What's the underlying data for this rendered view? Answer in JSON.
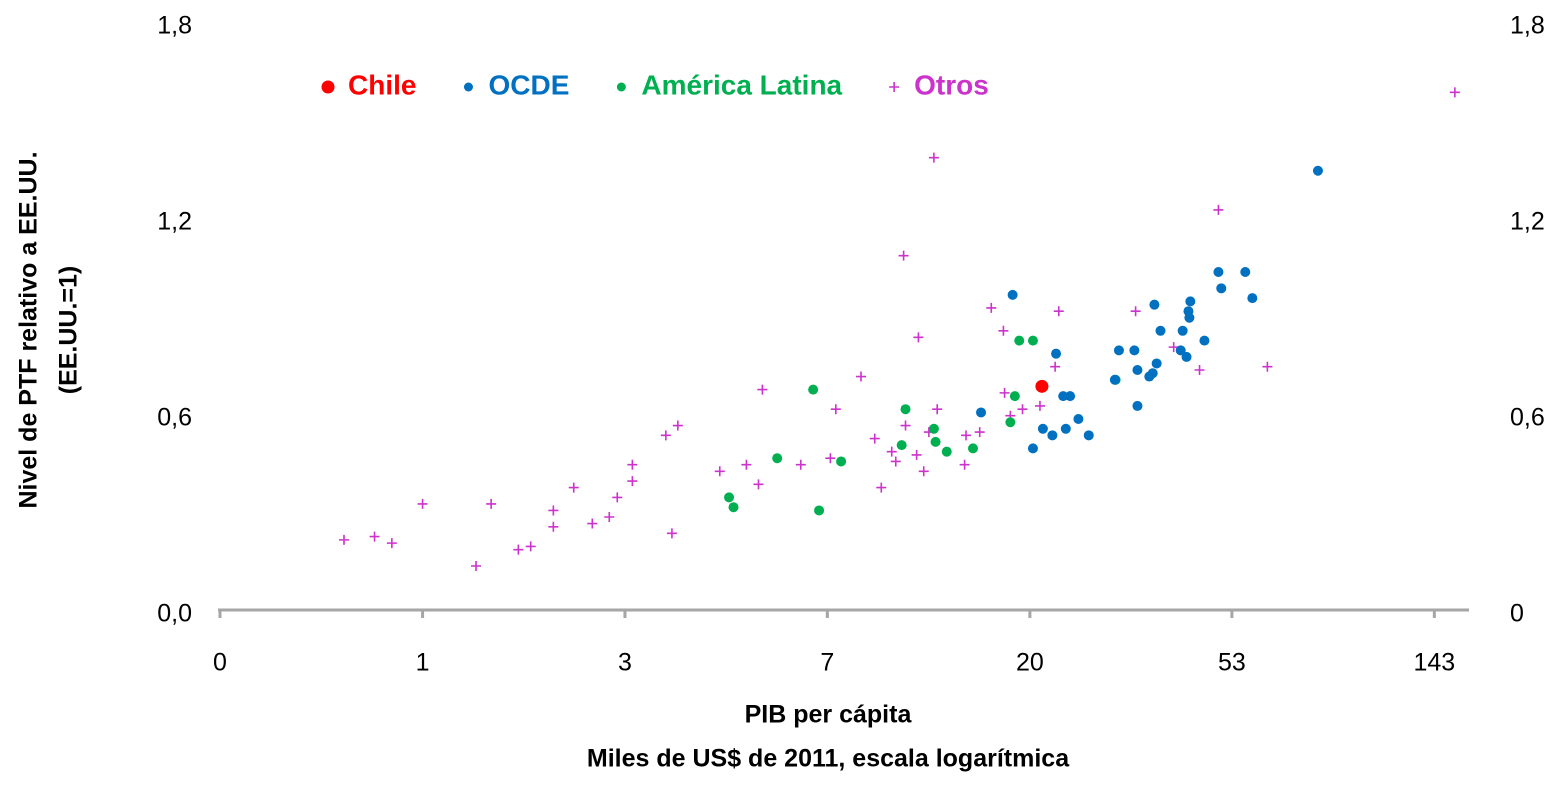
{
  "chart_data": {
    "type": "scatter",
    "xlabel": [
      "PIB per cápita",
      "Miles de US$ de 2011, escala logarítmica"
    ],
    "ylabel": [
      "Nivel de PTF relativo a EE.UU.",
      "(EE.UU.=1)"
    ],
    "xscale": "log",
    "xlim": [
      0.37,
      170
    ],
    "xticks": [
      {
        "value": 0.37,
        "label": "0"
      },
      1,
      {
        "value": 2.7,
        "label": "3"
      },
      {
        "value": 7.29,
        "label": "7"
      },
      {
        "value": 19.7,
        "label": "20"
      },
      {
        "value": 53.1,
        "label": "53"
      },
      {
        "value": 143.4,
        "label": "143"
      }
    ],
    "ylim": [
      0,
      1.8
    ],
    "yticks": [
      {
        "value": 0,
        "label": "0,0"
      },
      {
        "value": 0.6,
        "label": "0,6"
      },
      {
        "value": 1.2,
        "label": "1,2"
      },
      {
        "value": 1.8,
        "label": "1,8"
      }
    ],
    "y2lim": [
      0,
      1.8
    ],
    "y2ticks": [
      0,
      {
        "value": 0.6,
        "label": "0,6"
      },
      {
        "value": 1.2,
        "label": "1,2"
      },
      {
        "value": 1.8,
        "label": "1,8"
      }
    ],
    "grid": false,
    "legend": "top",
    "series": [
      {
        "name": "Chile",
        "color": "#ff0000",
        "marker": "circle",
        "x": [
          20.9
        ],
        "values": [
          0.7
        ]
      },
      {
        "name": "OCDE",
        "color": "#0070c0",
        "marker": "circle",
        "x": [
          81.0,
          56.7,
          50.4,
          49.7,
          58.7,
          43.3,
          43.1,
          42.9,
          36.3,
          37.4,
          41.7,
          46.4,
          41.3,
          42.5,
          36.7,
          35.4,
          36.0,
          32.9,
          33.4,
          30.5,
          29.9,
          33.4,
          22.4,
          23.2,
          24.0,
          25.0,
          26.3,
          23.5,
          22.0,
          21.0,
          20.0,
          15.5,
          18.1
        ],
        "values": [
          1.36,
          1.05,
          1.0,
          1.05,
          0.97,
          0.96,
          0.91,
          0.93,
          0.95,
          0.87,
          0.87,
          0.84,
          0.81,
          0.79,
          0.77,
          0.73,
          0.74,
          0.81,
          0.75,
          0.81,
          0.72,
          0.64,
          0.8,
          0.67,
          0.67,
          0.6,
          0.55,
          0.57,
          0.55,
          0.57,
          0.51,
          0.62,
          0.98
        ]
      },
      {
        "name": "América Latina",
        "color": "#00b050",
        "marker": "circle",
        "x": [
          18.7,
          20.0,
          18.3,
          17.9,
          30.0,
          10.7,
          10.5,
          12.3,
          12.4,
          13.1,
          14.9,
          6.8,
          5.7,
          7.8,
          4.5,
          4.6,
          7.0
        ],
        "values": [
          0.84,
          0.84,
          0.67,
          0.59,
          0.72,
          0.63,
          0.52,
          0.57,
          0.53,
          0.5,
          0.51,
          0.69,
          0.48,
          0.47,
          0.36,
          0.33,
          0.32
        ]
      },
      {
        "name": "Otros",
        "color": "#cc33cc",
        "marker": "plus",
        "x": [
          158.6,
          12.3,
          49.7,
          10.6,
          16.3,
          22.7,
          17.3,
          33.1,
          39.9,
          45.3,
          63.2,
          11.4,
          8.6,
          5.3,
          7.6,
          22.3,
          17.4,
          24.0,
          20.7,
          19.0,
          17.9,
          15.4,
          14.4,
          14.3,
          12.5,
          10.7,
          12.0,
          9.2,
          10.0,
          10.2,
          11.3,
          11.7,
          9.5,
          7.4,
          6.4,
          4.9,
          4.3,
          5.2,
          3.3,
          3.5,
          3.4,
          2.8,
          2.8,
          2.6,
          2.5,
          2.3,
          2.1,
          1.9,
          1.9,
          1.7,
          1.6,
          1.4,
          1.3,
          1.0,
          0.86,
          0.79,
          0.68
        ],
        "values": [
          1.6,
          1.4,
          1.24,
          1.1,
          0.94,
          0.93,
          0.87,
          0.93,
          0.82,
          0.75,
          0.76,
          0.85,
          0.73,
          0.69,
          0.63,
          0.76,
          0.68,
          0.67,
          0.64,
          0.63,
          0.61,
          0.56,
          0.55,
          0.46,
          0.63,
          0.58,
          0.56,
          0.54,
          0.5,
          0.47,
          0.49,
          0.44,
          0.39,
          0.48,
          0.46,
          0.46,
          0.44,
          0.4,
          0.55,
          0.58,
          0.25,
          0.46,
          0.41,
          0.36,
          0.3,
          0.28,
          0.39,
          0.32,
          0.27,
          0.21,
          0.2,
          0.34,
          0.15,
          0.34,
          0.22,
          0.24,
          0.23
        ]
      }
    ]
  }
}
